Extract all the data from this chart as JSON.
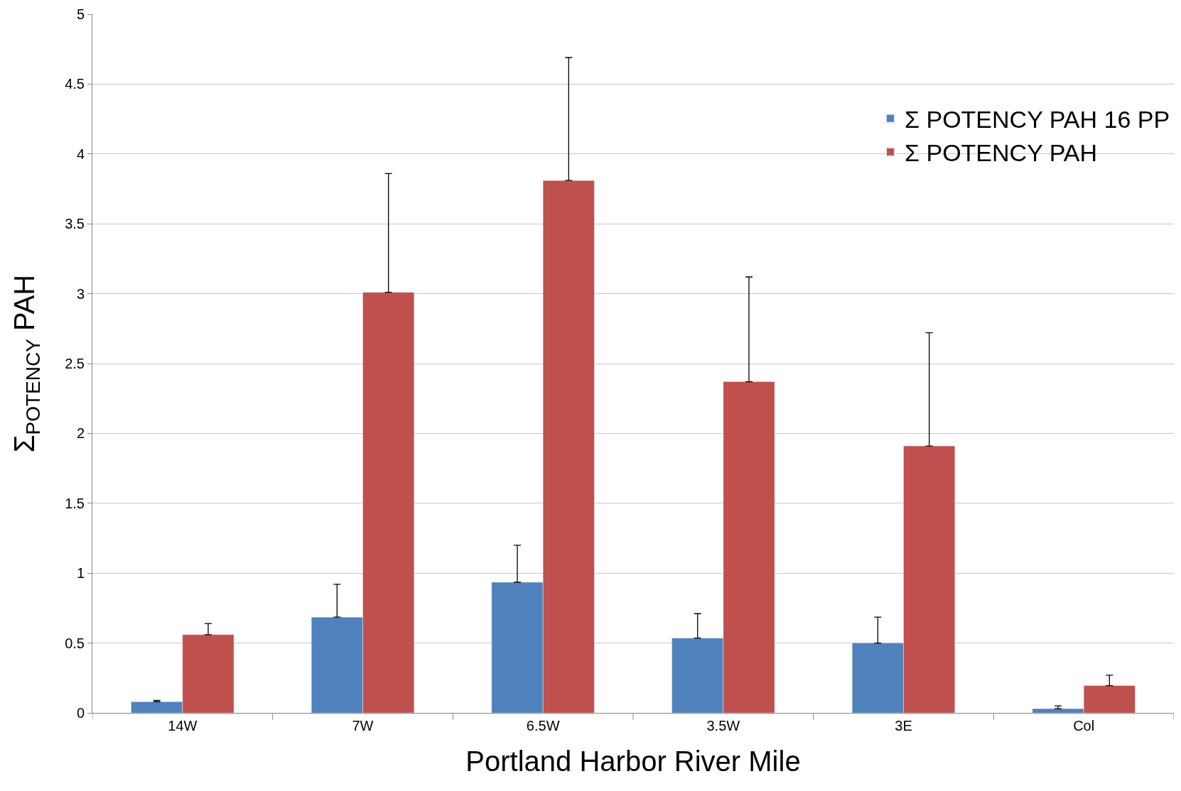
{
  "chart_data": {
    "type": "bar",
    "xlabel": "Portland Harbor River Mile",
    "ylabel": "Σ$_{POTENCY}$ PAH",
    "categories": [
      "14W",
      "7W",
      "6.5W",
      "3.5W",
      "3E",
      "Col"
    ],
    "series": [
      {
        "name": "Σ POTENCY PAH 16 PP",
        "color": "#4f81bd",
        "values": [
          0.08,
          0.685,
          0.935,
          0.535,
          0.5,
          0.03
        ],
        "errors": [
          [
            0.08,
            0.09
          ],
          [
            0.685,
            0.92
          ],
          [
            0.935,
            1.2
          ],
          [
            0.535,
            0.71
          ],
          [
            0.5,
            0.685
          ],
          [
            0.03,
            0.05
          ]
        ]
      },
      {
        "name": "Σ POTENCY PAH",
        "color": "#c0504d",
        "values": [
          0.56,
          3.01,
          3.81,
          2.37,
          1.91,
          0.195
        ],
        "errors": [
          [
            0.56,
            0.64
          ],
          [
            3.01,
            3.86
          ],
          [
            3.81,
            4.69
          ],
          [
            2.37,
            3.12
          ],
          [
            1.91,
            2.72
          ],
          [
            0.195,
            0.27
          ]
        ]
      }
    ],
    "ylim": [
      0,
      5
    ],
    "yticks": [
      0,
      0.5,
      1,
      1.5,
      2,
      2.5,
      3,
      3.5,
      4,
      4.5,
      5
    ],
    "grid": "y",
    "legend": "top right"
  }
}
